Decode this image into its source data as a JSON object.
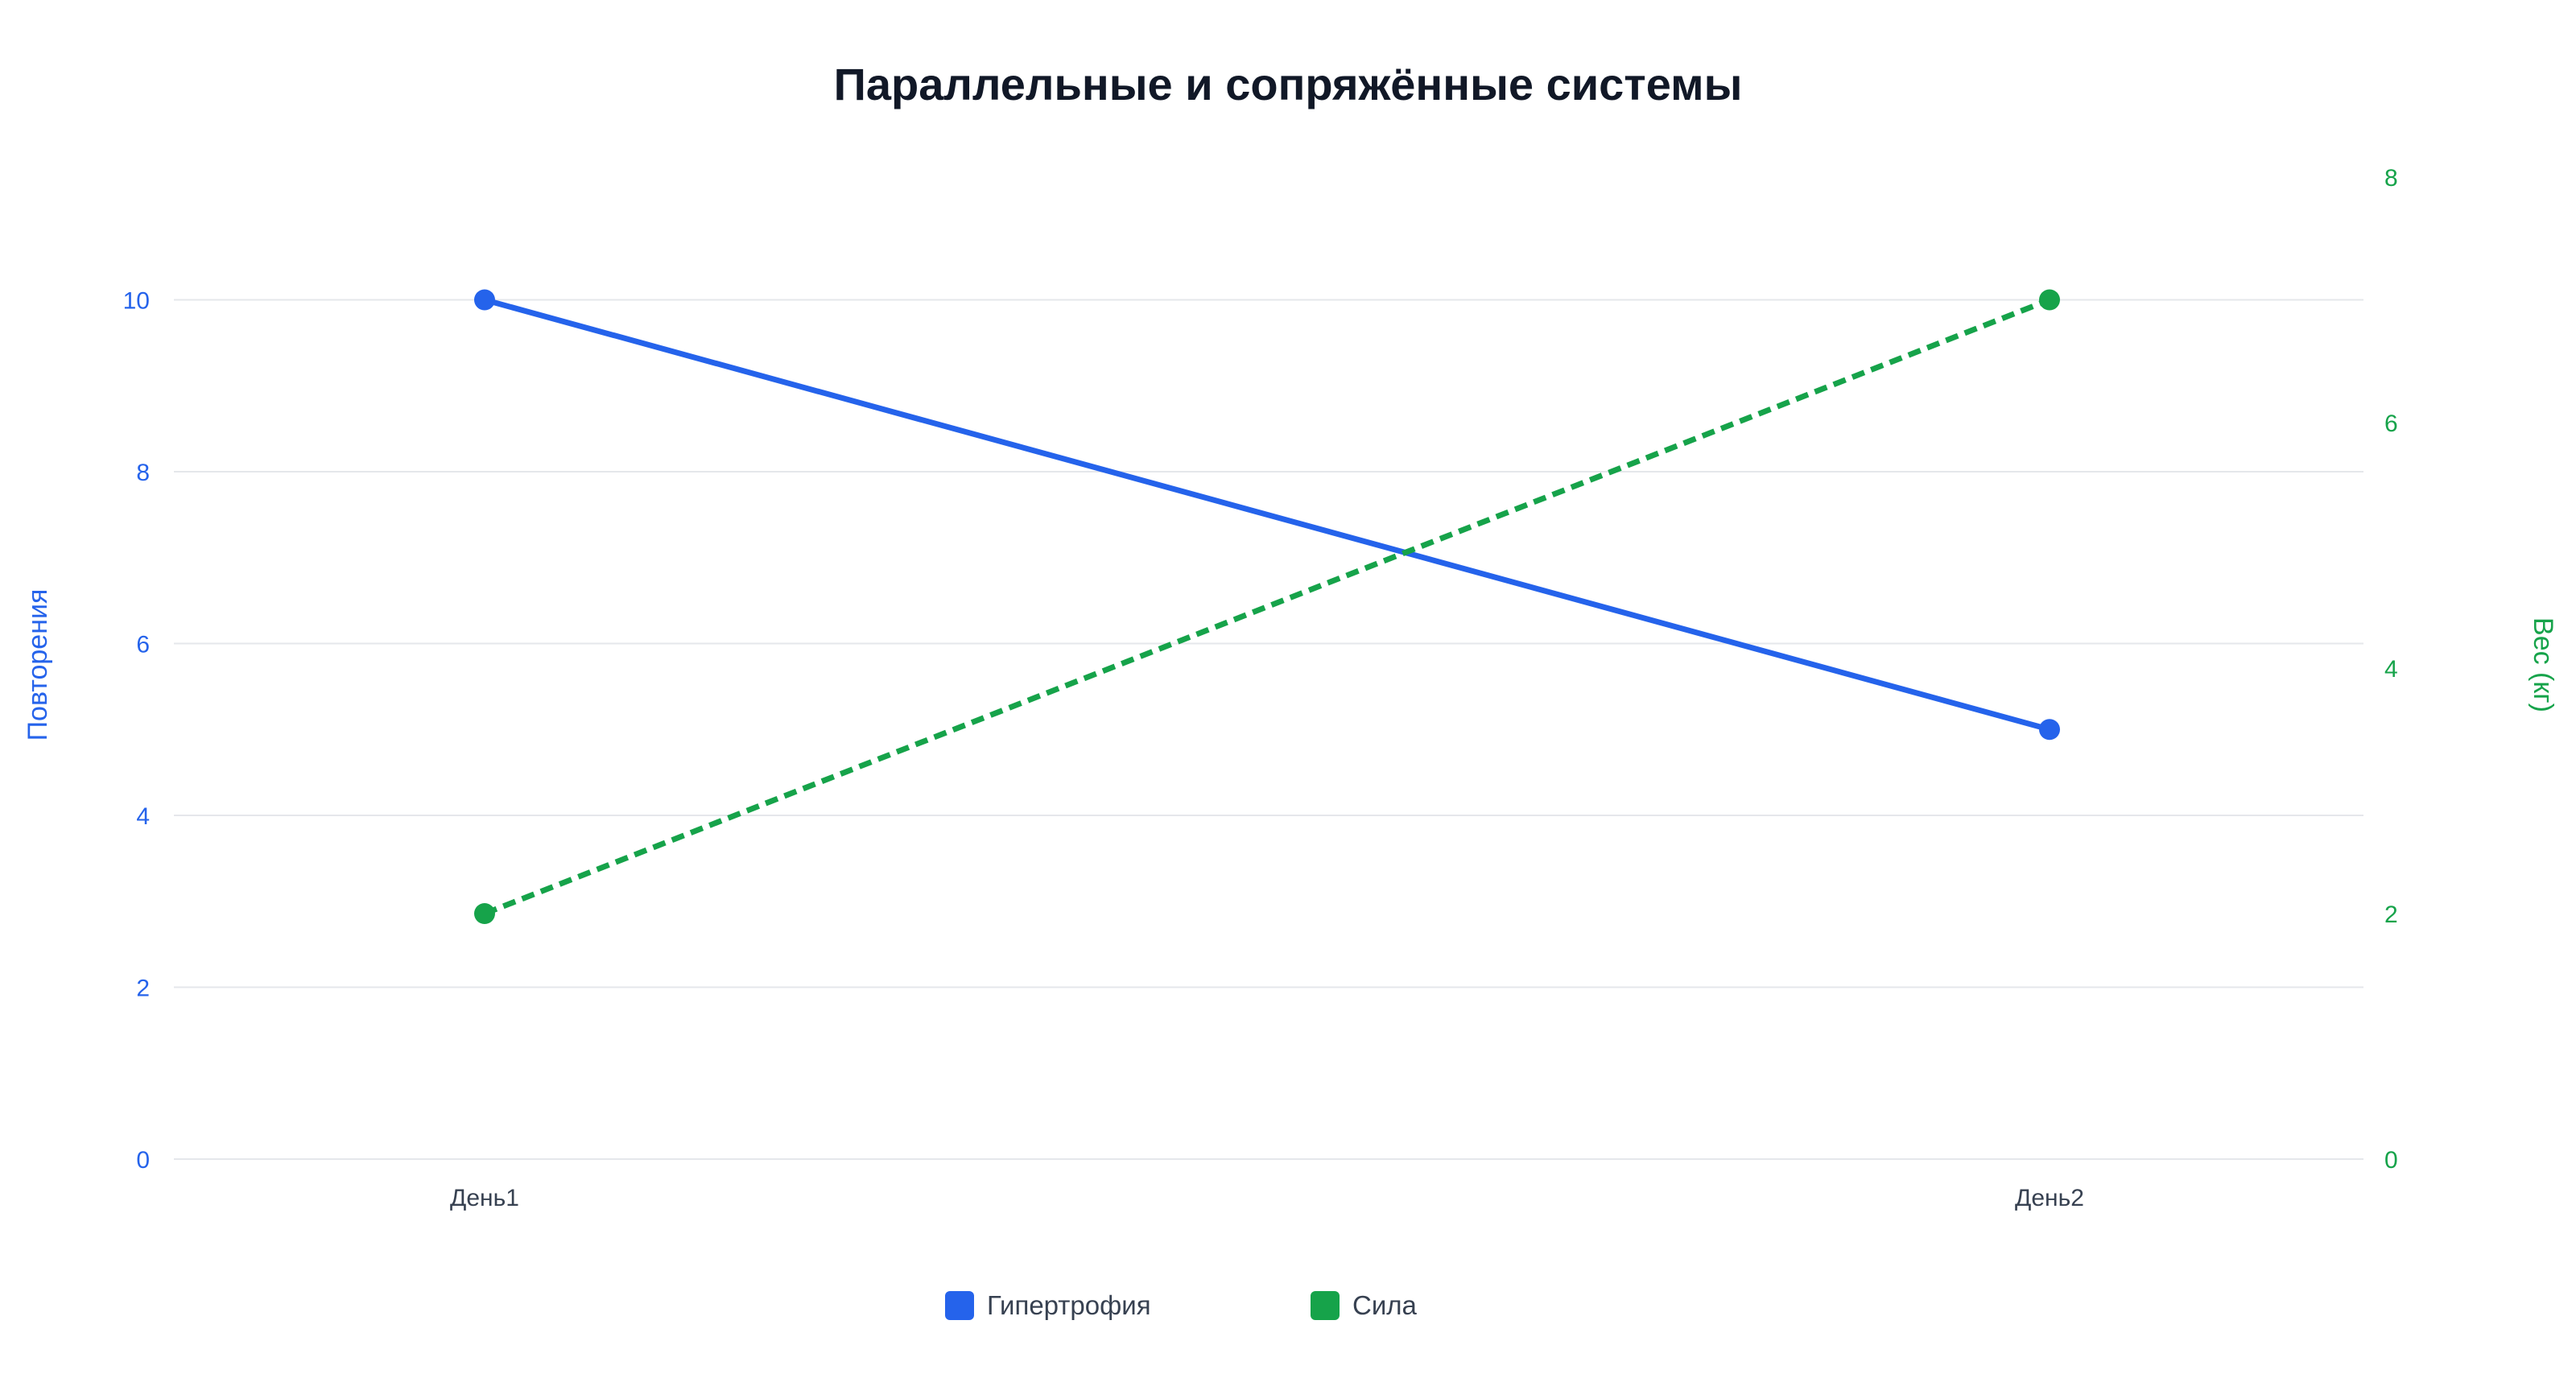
{
  "chart_data": {
    "type": "line",
    "title": "Параллельные и сопряжённые системы",
    "categories": [
      "День1",
      "День2"
    ],
    "y_left": {
      "label": "Повторения",
      "range": [
        0,
        11
      ],
      "ticks": [
        0,
        2,
        4,
        6,
        8,
        10
      ],
      "color": "#2563eb"
    },
    "y_right": {
      "label": "Вес (кг)",
      "range": [
        0,
        8
      ],
      "ticks": [
        0,
        2,
        4,
        6,
        8
      ],
      "color": "#16a34a"
    },
    "series": [
      {
        "name": "Гипертрофия",
        "axis": "left",
        "values": [
          10,
          5
        ],
        "color": "#2563eb",
        "style": "solid"
      },
      {
        "name": "Сила",
        "axis": "right",
        "values": [
          2,
          7
        ],
        "color": "#16a34a",
        "style": "dashed"
      }
    ],
    "grid": true,
    "legend_position": "bottom-center"
  }
}
